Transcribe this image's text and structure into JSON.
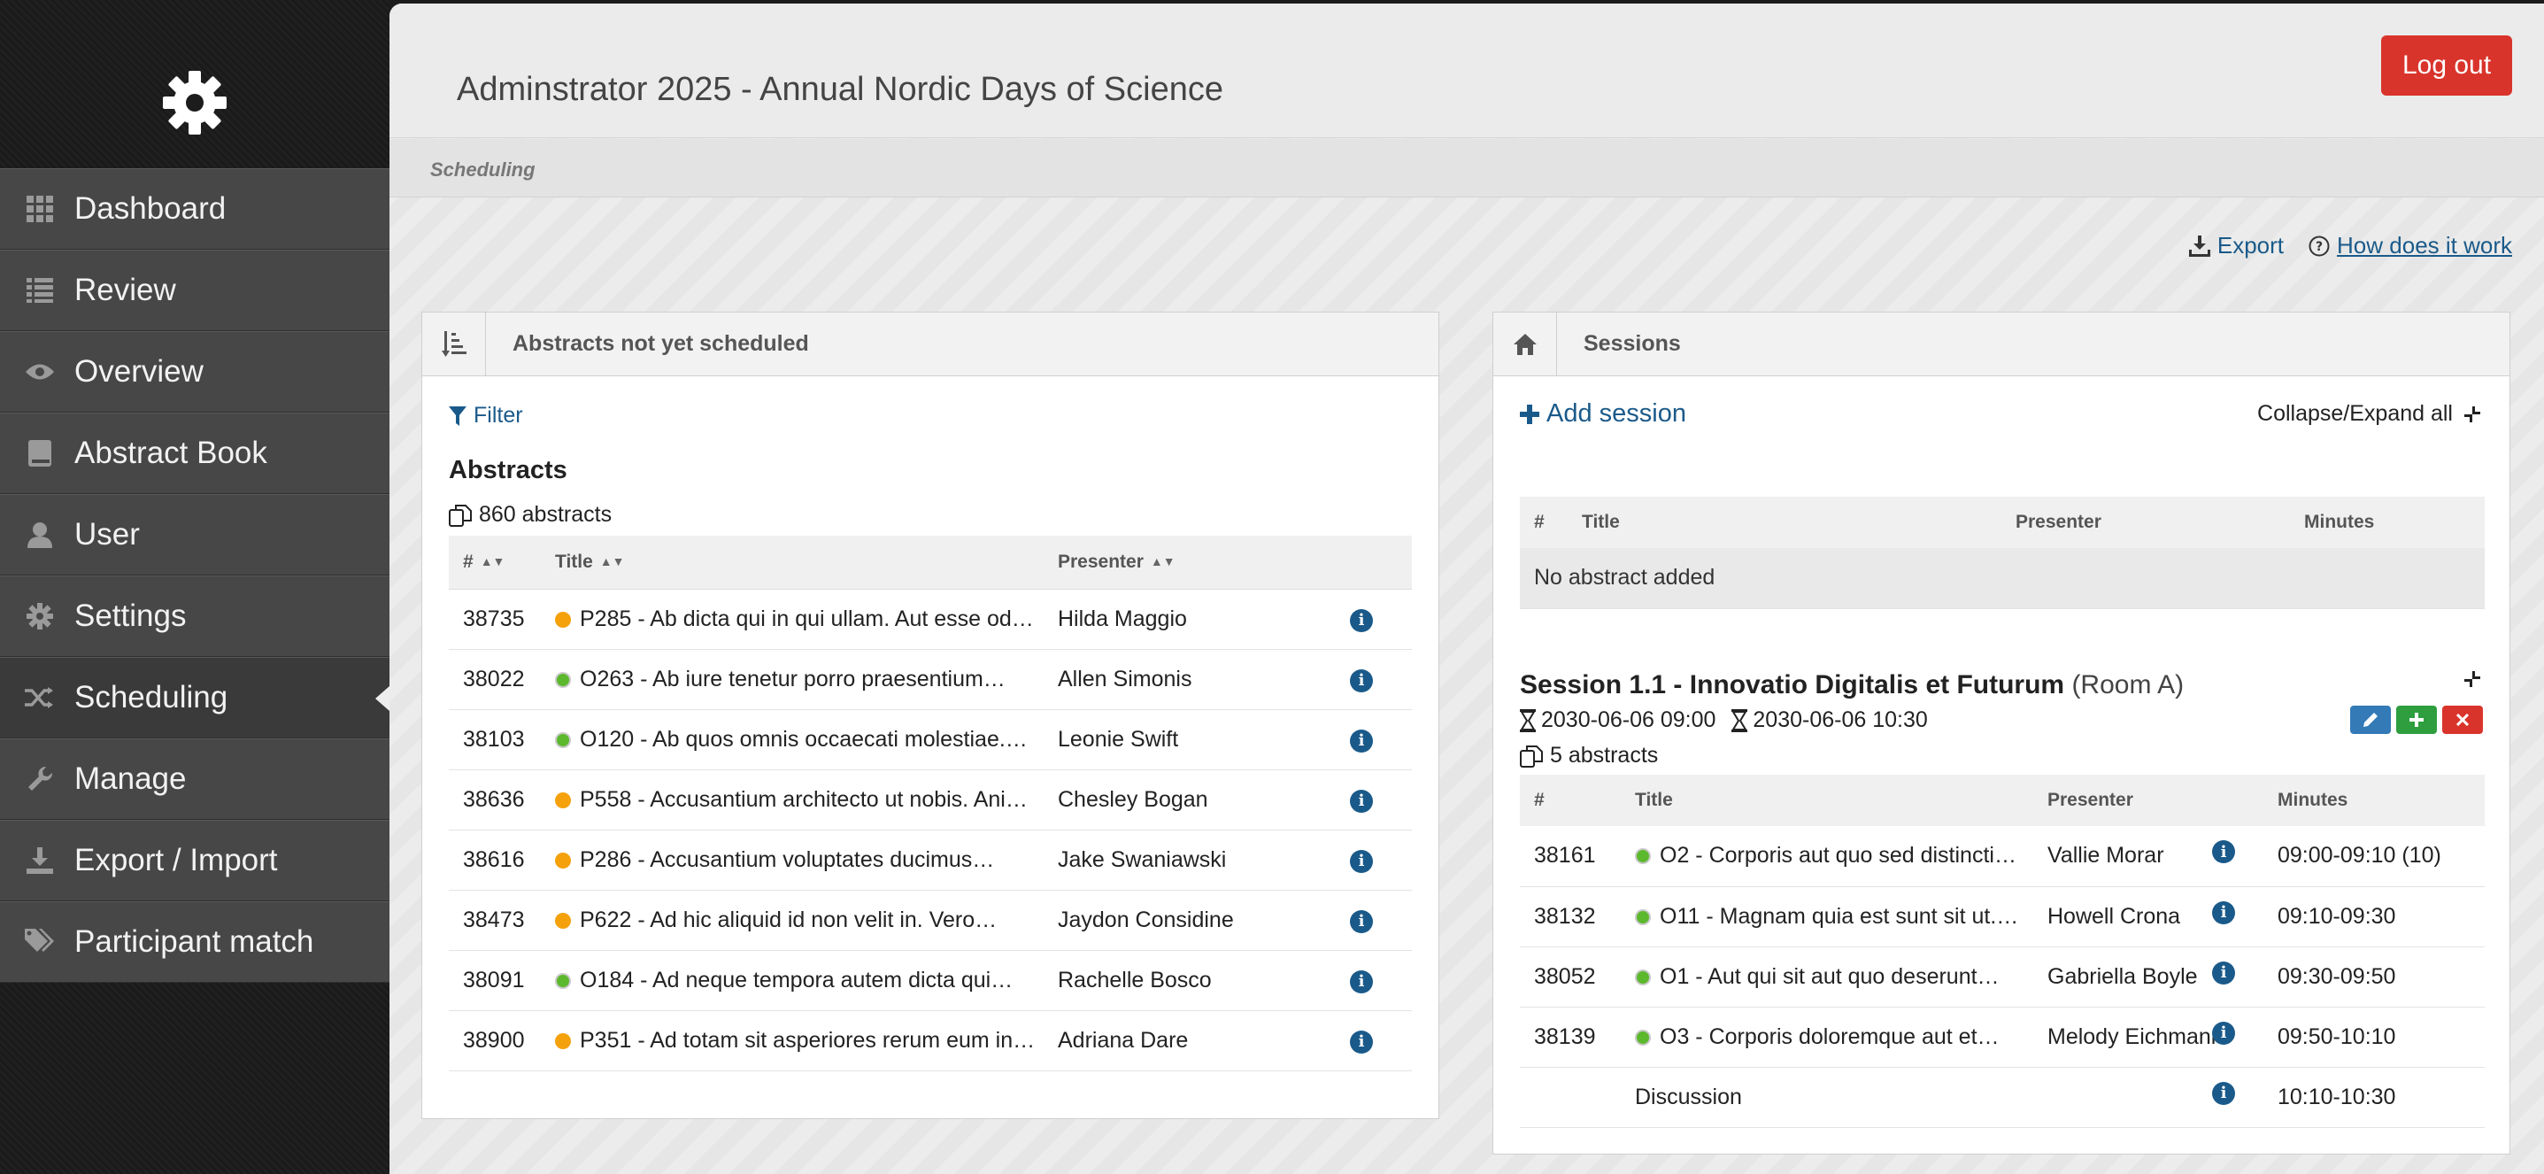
{
  "sidebar": {
    "logo_icon": "gear-icon",
    "items": [
      {
        "label": "Dashboard",
        "icon": "grid-icon"
      },
      {
        "label": "Review",
        "icon": "list-icon"
      },
      {
        "label": "Overview",
        "icon": "eye-icon"
      },
      {
        "label": "Abstract Book",
        "icon": "book-icon"
      },
      {
        "label": "User",
        "icon": "user-icon"
      },
      {
        "label": "Settings",
        "icon": "gear-icon"
      },
      {
        "label": "Scheduling",
        "icon": "shuffle-icon",
        "active": true
      },
      {
        "label": "Manage",
        "icon": "wrench-icon"
      },
      {
        "label": "Export / Import",
        "icon": "download-icon"
      },
      {
        "label": "Participant match",
        "icon": "tags-icon"
      }
    ]
  },
  "header": {
    "title": "Adminstrator 2025 - Annual Nordic Days of Science",
    "logout_label": "Log out",
    "breadcrumb": "Scheduling"
  },
  "toplinks": {
    "export_label": "Export",
    "how_label": "How does it work"
  },
  "left_panel": {
    "title": "Abstracts not yet scheduled",
    "filter_label": "Filter",
    "heading": "Abstracts",
    "count": "860 abstracts",
    "columns": [
      "#",
      "Title",
      "Presenter"
    ],
    "rows": [
      {
        "id": "38735",
        "status": "orange",
        "title": "P285 - Ab dicta qui in qui ullam. Aut esse od…",
        "presenter": "Hilda Maggio"
      },
      {
        "id": "38022",
        "status": "green",
        "title": "O263 - Ab iure tenetur porro praesentium…",
        "presenter": "Allen Simonis"
      },
      {
        "id": "38103",
        "status": "green",
        "title": "O120 - Ab quos omnis occaecati molestiae.…",
        "presenter": "Leonie Swift"
      },
      {
        "id": "38636",
        "status": "orange",
        "title": "P558 - Accusantium architecto ut nobis. Ani…",
        "presenter": "Chesley Bogan"
      },
      {
        "id": "38616",
        "status": "orange",
        "title": "P286 - Accusantium voluptates ducimus…",
        "presenter": "Jake Swaniawski"
      },
      {
        "id": "38473",
        "status": "orange",
        "title": "P622 - Ad hic aliquid id non velit in. Vero…",
        "presenter": "Jaydon Considine"
      },
      {
        "id": "38091",
        "status": "green",
        "title": "O184 - Ad neque tempora autem dicta qui…",
        "presenter": "Rachelle Bosco"
      },
      {
        "id": "38900",
        "status": "orange",
        "title": "P351 - Ad totam sit asperiores rerum eum in…",
        "presenter": "Adriana Dare"
      }
    ]
  },
  "right_panel": {
    "title": "Sessions",
    "add_label": "Add session",
    "collapse_all_label": "Collapse/Expand all",
    "empty_columns": [
      "#",
      "Title",
      "Presenter",
      "Minutes"
    ],
    "empty_message": "No abstract added",
    "session": {
      "title": "Session 1.1 - Innovatio Digitalis et Futurum",
      "room": "(Room A)",
      "start": "2030-06-06 09:00",
      "end": "2030-06-06 10:30",
      "count": "5 abstracts",
      "columns": [
        "#",
        "Title",
        "Presenter",
        "Minutes"
      ],
      "rows": [
        {
          "id": "38161",
          "status": "green",
          "title": "O2 - Corporis aut quo sed distincti…",
          "presenter": "Vallie Morar",
          "minutes": "09:00-09:10 (10)"
        },
        {
          "id": "38132",
          "status": "green",
          "title": "O11 - Magnam quia est sunt sit ut.…",
          "presenter": "Howell Crona",
          "minutes": "09:10-09:30"
        },
        {
          "id": "38052",
          "status": "green",
          "title": "O1 - Aut qui sit aut quo deserunt…",
          "presenter": "Gabriella Boyle",
          "minutes": "09:30-09:50"
        },
        {
          "id": "38139",
          "status": "green",
          "title": "O3 - Corporis doloremque aut et…",
          "presenter": "Melody Eichmann",
          "minutes": "09:50-10:10"
        },
        {
          "id": "",
          "status": "",
          "title": "Discussion",
          "presenter": "",
          "minutes": "10:10-10:30"
        }
      ]
    }
  },
  "colors": {
    "sidebar_item": "#474747",
    "accent_link": "#1a5a8a",
    "logout": "#d9342b",
    "status_orange": "#f4a10c",
    "status_green": "#5cb82d"
  }
}
